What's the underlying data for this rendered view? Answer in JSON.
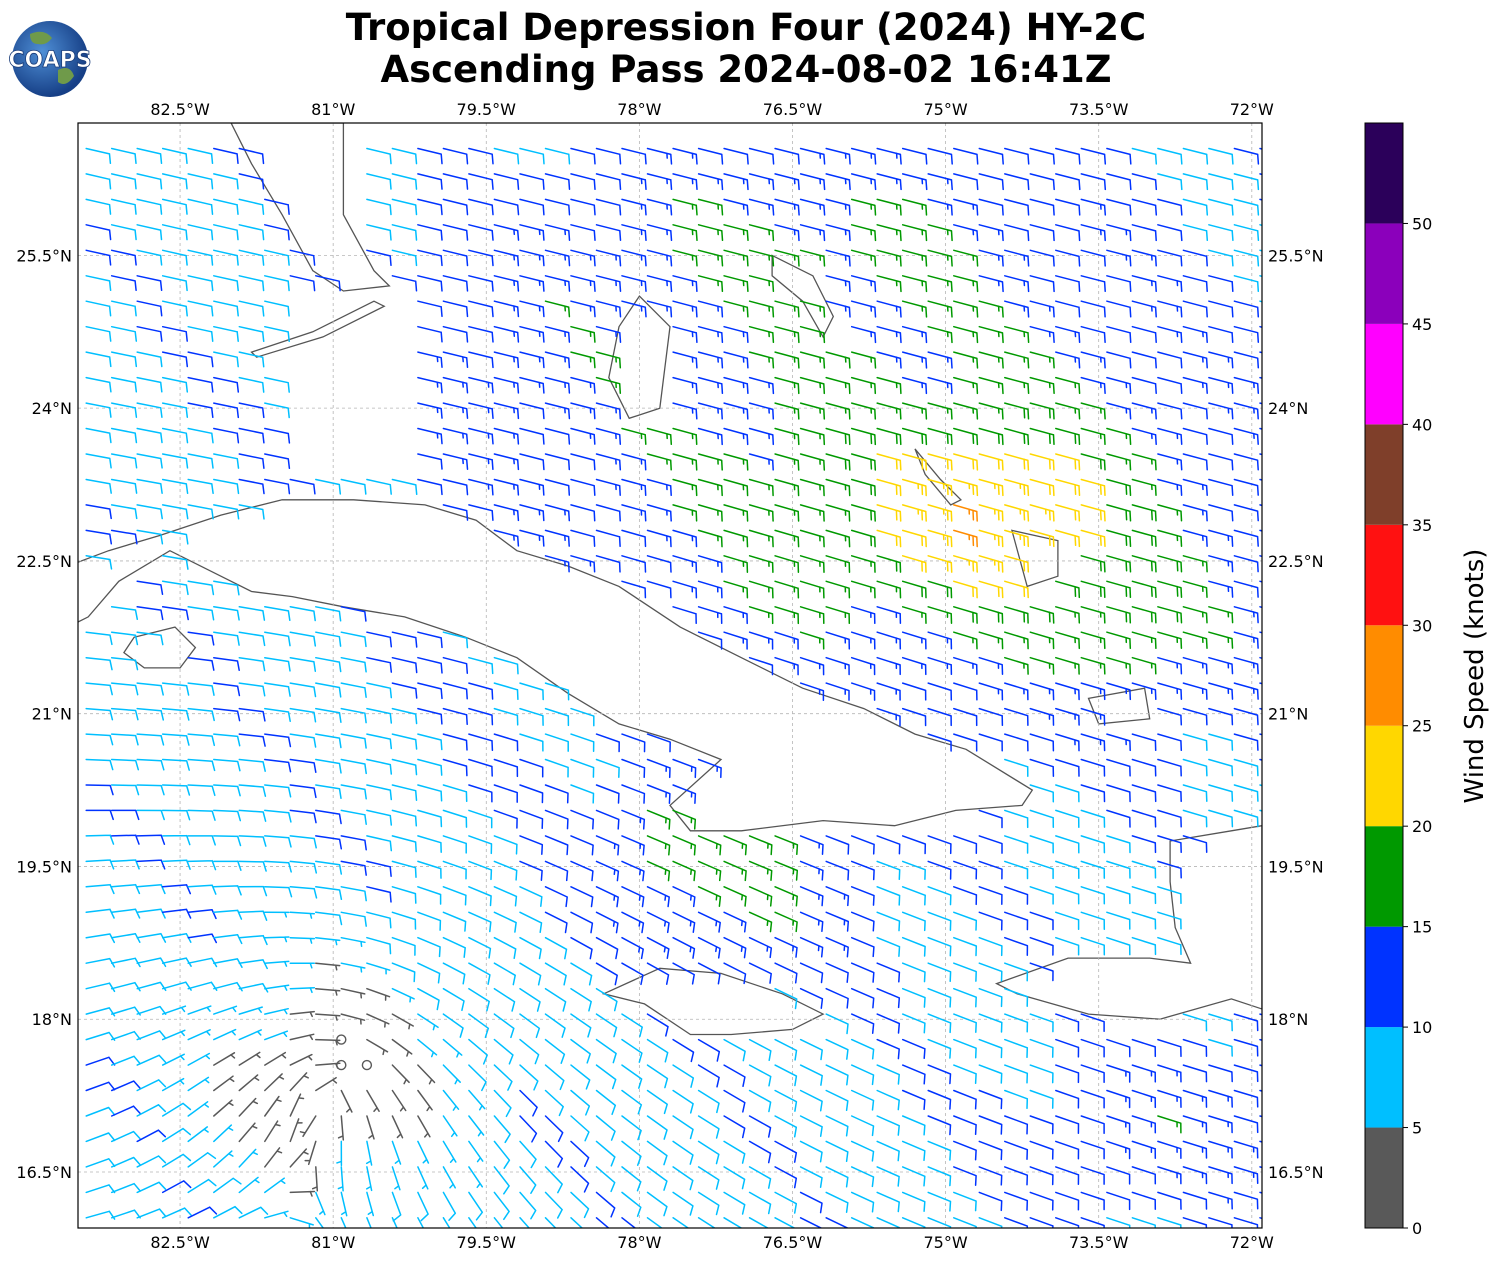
{
  "logo": {
    "text": "COAPS"
  },
  "title": {
    "line1": "Tropical Depression Four (2024) HY-2C",
    "line2": "Ascending Pass 2024-08-02 16:41Z"
  },
  "map": {
    "lon_range": [
      -83.5,
      -71.9
    ],
    "lat_range": [
      15.95,
      26.8
    ],
    "lon_ticks": [
      {
        "value": -82.5,
        "label": "82.5°W"
      },
      {
        "value": -81.0,
        "label": "81°W"
      },
      {
        "value": -79.5,
        "label": "79.5°W"
      },
      {
        "value": -78.0,
        "label": "78°W"
      },
      {
        "value": -76.5,
        "label": "76.5°W"
      },
      {
        "value": -75.0,
        "label": "75°W"
      },
      {
        "value": -73.5,
        "label": "73.5°W"
      },
      {
        "value": -72.0,
        "label": "72°W"
      }
    ],
    "lat_ticks": [
      {
        "value": 25.5,
        "label": "25.5°N"
      },
      {
        "value": 24.0,
        "label": "24°N"
      },
      {
        "value": 22.5,
        "label": "22.5°N"
      },
      {
        "value": 21.0,
        "label": "21°N"
      },
      {
        "value": 19.5,
        "label": "19.5°N"
      },
      {
        "value": 18.0,
        "label": "18°N"
      },
      {
        "value": 16.5,
        "label": "16.5°N"
      }
    ],
    "grid": true,
    "land_color": "#ffffff",
    "coast_color": "#555555",
    "land_polygons": [
      {
        "name": "Florida",
        "points": [
          [
            -80.9,
            26.8
          ],
          [
            -80.9,
            25.9
          ],
          [
            -80.6,
            25.35
          ],
          [
            -80.45,
            25.2
          ],
          [
            -80.9,
            25.15
          ],
          [
            -81.2,
            25.35
          ],
          [
            -81.5,
            25.9
          ],
          [
            -81.8,
            26.4
          ],
          [
            -82.0,
            26.8
          ]
        ]
      },
      {
        "name": "Florida Keys",
        "points": [
          [
            -80.6,
            25.05
          ],
          [
            -81.2,
            24.75
          ],
          [
            -81.8,
            24.55
          ],
          [
            -81.75,
            24.5
          ],
          [
            -81.1,
            24.7
          ],
          [
            -80.5,
            25.0
          ]
        ]
      },
      {
        "name": "Cuba",
        "points": [
          [
            -84.95,
            21.86
          ],
          [
            -84.5,
            21.9
          ],
          [
            -84.1,
            22.2
          ],
          [
            -83.6,
            22.45
          ],
          [
            -83.2,
            22.6
          ],
          [
            -82.7,
            22.75
          ],
          [
            -82.1,
            22.95
          ],
          [
            -81.5,
            23.1
          ],
          [
            -80.8,
            23.1
          ],
          [
            -80.1,
            23.05
          ],
          [
            -79.6,
            22.9
          ],
          [
            -79.2,
            22.6
          ],
          [
            -78.7,
            22.45
          ],
          [
            -78.2,
            22.25
          ],
          [
            -77.6,
            21.85
          ],
          [
            -77.0,
            21.55
          ],
          [
            -76.4,
            21.25
          ],
          [
            -75.8,
            21.05
          ],
          [
            -75.3,
            20.8
          ],
          [
            -74.8,
            20.65
          ],
          [
            -74.15,
            20.25
          ],
          [
            -74.25,
            20.1
          ],
          [
            -74.9,
            20.05
          ],
          [
            -75.5,
            19.9
          ],
          [
            -76.2,
            19.95
          ],
          [
            -77.0,
            19.85
          ],
          [
            -77.5,
            19.85
          ],
          [
            -77.7,
            20.1
          ],
          [
            -77.2,
            20.55
          ],
          [
            -77.7,
            20.75
          ],
          [
            -78.2,
            20.9
          ],
          [
            -78.7,
            21.2
          ],
          [
            -79.2,
            21.55
          ],
          [
            -79.7,
            21.75
          ],
          [
            -80.3,
            21.95
          ],
          [
            -80.9,
            22.05
          ],
          [
            -81.4,
            22.15
          ],
          [
            -81.8,
            22.2
          ],
          [
            -82.1,
            22.35
          ],
          [
            -82.6,
            22.6
          ],
          [
            -83.1,
            22.3
          ],
          [
            -83.4,
            21.95
          ],
          [
            -83.8,
            21.75
          ],
          [
            -84.3,
            21.75
          ],
          [
            -84.95,
            21.86
          ]
        ]
      },
      {
        "name": "Isla de la Juventud",
        "points": [
          [
            -82.95,
            21.75
          ],
          [
            -82.55,
            21.85
          ],
          [
            -82.35,
            21.65
          ],
          [
            -82.5,
            21.45
          ],
          [
            -82.85,
            21.45
          ],
          [
            -83.05,
            21.6
          ]
        ]
      },
      {
        "name": "Jamaica",
        "points": [
          [
            -78.35,
            18.25
          ],
          [
            -77.8,
            18.5
          ],
          [
            -77.2,
            18.45
          ],
          [
            -76.6,
            18.25
          ],
          [
            -76.2,
            18.05
          ],
          [
            -76.5,
            17.9
          ],
          [
            -77.1,
            17.85
          ],
          [
            -77.5,
            17.85
          ],
          [
            -77.95,
            18.15
          ],
          [
            -78.35,
            18.25
          ]
        ]
      },
      {
        "name": "Hispaniola",
        "points": [
          [
            -74.5,
            18.35
          ],
          [
            -73.8,
            18.6
          ],
          [
            -73.0,
            18.6
          ],
          [
            -72.6,
            18.55
          ],
          [
            -72.75,
            18.9
          ],
          [
            -72.8,
            19.35
          ],
          [
            -72.8,
            19.75
          ],
          [
            -72.2,
            19.85
          ],
          [
            -71.9,
            19.9
          ],
          [
            -71.9,
            18.1
          ],
          [
            -72.2,
            18.2
          ],
          [
            -72.9,
            18.0
          ],
          [
            -73.6,
            18.05
          ],
          [
            -74.3,
            18.25
          ],
          [
            -74.5,
            18.35
          ]
        ]
      },
      {
        "name": "Andros",
        "points": [
          [
            -78.0,
            25.1
          ],
          [
            -77.7,
            24.8
          ],
          [
            -77.75,
            24.4
          ],
          [
            -77.8,
            24.0
          ],
          [
            -78.1,
            23.9
          ],
          [
            -78.3,
            24.3
          ],
          [
            -78.2,
            24.8
          ]
        ]
      },
      {
        "name": "Eleuthera",
        "points": [
          [
            -76.7,
            25.5
          ],
          [
            -76.3,
            25.3
          ],
          [
            -76.1,
            24.9
          ],
          [
            -76.2,
            24.7
          ],
          [
            -76.4,
            25.05
          ],
          [
            -76.7,
            25.3
          ]
        ]
      },
      {
        "name": "Long Island",
        "points": [
          [
            -75.3,
            23.6
          ],
          [
            -75.05,
            23.3
          ],
          [
            -74.85,
            23.1
          ],
          [
            -74.95,
            23.05
          ],
          [
            -75.2,
            23.35
          ]
        ]
      },
      {
        "name": "Great Inagua",
        "points": [
          [
            -73.6,
            21.15
          ],
          [
            -73.05,
            21.25
          ],
          [
            -73.0,
            20.95
          ],
          [
            -73.5,
            20.9
          ]
        ]
      },
      {
        "name": "Acklins",
        "points": [
          [
            -74.35,
            22.8
          ],
          [
            -73.9,
            22.7
          ],
          [
            -73.9,
            22.35
          ],
          [
            -74.2,
            22.25
          ]
        ]
      }
    ]
  },
  "wind": {
    "units": "knots",
    "grid_spacing_deg": 0.25,
    "vortex_center": {
      "lon": -81.1,
      "lat": 17.4
    },
    "calm_circle_speed": 2.5
  },
  "colorbar": {
    "label": "Wind Speed (knots)",
    "ticks": [
      "0",
      "5",
      "10",
      "15",
      "20",
      "25",
      "30",
      "35",
      "40",
      "45",
      "50"
    ],
    "tick_values": [
      0,
      5,
      10,
      15,
      20,
      25,
      30,
      35,
      40,
      45,
      50
    ],
    "max": 55,
    "bins": [
      {
        "from": 0,
        "to": 5,
        "color": "#595959"
      },
      {
        "from": 5,
        "to": 10,
        "color": "#00bfff"
      },
      {
        "from": 10,
        "to": 15,
        "color": "#0033ff"
      },
      {
        "from": 15,
        "to": 20,
        "color": "#009900"
      },
      {
        "from": 20,
        "to": 25,
        "color": "#ffd700"
      },
      {
        "from": 25,
        "to": 30,
        "color": "#ff8c00"
      },
      {
        "from": 30,
        "to": 35,
        "color": "#ff1111"
      },
      {
        "from": 35,
        "to": 40,
        "color": "#7f3f2a"
      },
      {
        "from": 40,
        "to": 45,
        "color": "#ff00ff"
      },
      {
        "from": 45,
        "to": 50,
        "color": "#8b00bb"
      },
      {
        "from": 50,
        "to": 55,
        "color": "#2b005a"
      }
    ]
  }
}
